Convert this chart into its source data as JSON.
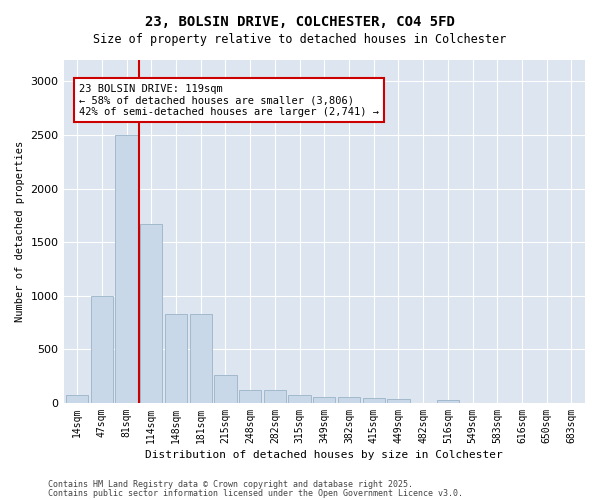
{
  "title1": "23, BOLSIN DRIVE, COLCHESTER, CO4 5FD",
  "title2": "Size of property relative to detached houses in Colchester",
  "xlabel": "Distribution of detached houses by size in Colchester",
  "ylabel": "Number of detached properties",
  "bins": [
    "14sqm",
    "47sqm",
    "81sqm",
    "114sqm",
    "148sqm",
    "181sqm",
    "215sqm",
    "248sqm",
    "282sqm",
    "315sqm",
    "349sqm",
    "382sqm",
    "415sqm",
    "449sqm",
    "482sqm",
    "516sqm",
    "549sqm",
    "583sqm",
    "616sqm",
    "650sqm",
    "683sqm"
  ],
  "values": [
    70,
    1000,
    2500,
    1670,
    830,
    830,
    260,
    120,
    120,
    70,
    55,
    55,
    50,
    40,
    0,
    30,
    0,
    0,
    0,
    0,
    0
  ],
  "bar_color": "#c8d8e8",
  "bar_edge_color": "#9ab4c8",
  "vline_pos": 2.5,
  "vline_color": "#cc0000",
  "annotation_text": "23 BOLSIN DRIVE: 119sqm\n← 58% of detached houses are smaller (3,806)\n42% of semi-detached houses are larger (2,741) →",
  "ylim": [
    0,
    3200
  ],
  "yticks": [
    0,
    500,
    1000,
    1500,
    2000,
    2500,
    3000
  ],
  "plot_bg_color": "#dde6f0",
  "fig_bg_color": "#ffffff",
  "footer1": "Contains HM Land Registry data © Crown copyright and database right 2025.",
  "footer2": "Contains public sector information licensed under the Open Government Licence v3.0."
}
